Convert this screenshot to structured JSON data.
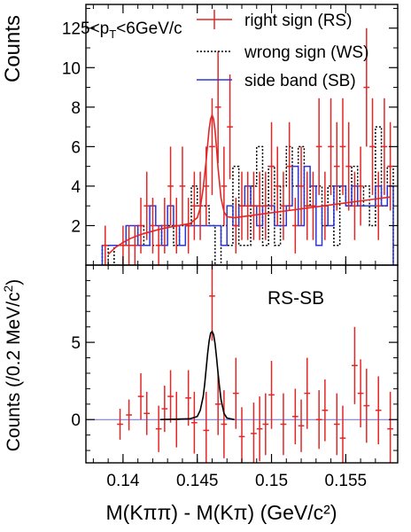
{
  "chart_data": [
    {
      "type": "histogram",
      "panel": "top",
      "ylabel": "Counts",
      "xlim": [
        0.1375,
        0.1585
      ],
      "ylim": [
        0,
        13.2
      ],
      "y_ticks": [
        2,
        4,
        6,
        8,
        10,
        12
      ],
      "x_ticks": [
        0.14,
        0.145,
        0.15,
        0.155
      ],
      "annotation": {
        "pre": "5<p",
        "sub": "T",
        "post": "<6GeV/c"
      },
      "legend": {
        "position": "top-right",
        "entries": [
          {
            "label": "right sign (RS)",
            "style": "error-cross",
            "color": "#e32626"
          },
          {
            "label": "wrong sign (WS)",
            "style": "dotted-line",
            "color": "#000000"
          },
          {
            "label": "side band (SB)",
            "style": "solid-line",
            "color": "#2b36d9"
          }
        ]
      },
      "series": [
        {
          "name": "right sign (RS)",
          "kind": "points",
          "color": "#e32626",
          "bin_width": 0.0004,
          "x": [
            0.1388,
            0.1396,
            0.14,
            0.1404,
            0.1408,
            0.1412,
            0.1416,
            0.142,
            0.1424,
            0.1428,
            0.1432,
            0.1436,
            0.144,
            0.1444,
            0.1448,
            0.1452,
            0.1456,
            0.146,
            0.1464,
            0.1468,
            0.1472,
            0.1476,
            0.148,
            0.1484,
            0.1488,
            0.1492,
            0.1496,
            0.15,
            0.1504,
            0.1508,
            0.1512,
            0.1516,
            0.152,
            0.1524,
            0.1528,
            0.1532,
            0.1536,
            0.154,
            0.1544,
            0.1548,
            0.1552,
            0.1556,
            0.156,
            0.1564,
            0.1568,
            0.1572,
            0.1576,
            0.158
          ],
          "y": [
            1,
            0,
            1,
            1,
            1,
            2,
            3,
            2,
            1,
            2,
            4,
            2,
            4,
            2,
            3,
            3,
            4,
            6,
            8,
            4,
            7,
            2,
            3,
            3,
            3,
            3,
            3,
            5,
            4,
            3,
            5,
            2,
            4,
            3,
            3,
            6,
            3,
            6,
            5,
            6,
            5,
            3,
            4,
            9,
            6,
            3,
            6,
            5
          ],
          "yerr": [
            1.0,
            0.0,
            1.0,
            1.0,
            1.0,
            1.41,
            1.73,
            1.41,
            1.0,
            1.41,
            2.0,
            1.41,
            2.0,
            1.41,
            1.73,
            1.73,
            2.0,
            2.45,
            2.83,
            2.0,
            2.65,
            1.41,
            1.73,
            1.73,
            1.73,
            1.73,
            1.73,
            2.24,
            2.0,
            1.73,
            2.24,
            1.41,
            2.0,
            1.73,
            1.73,
            2.45,
            1.73,
            2.45,
            2.24,
            2.45,
            2.24,
            1.73,
            2.0,
            3.0,
            2.45,
            1.73,
            2.45,
            2.24
          ]
        },
        {
          "name": "wrong sign (WS)",
          "kind": "step",
          "color": "#000000",
          "bin_edges": [
            0.1386,
            0.139,
            0.1394,
            0.1398,
            0.1402,
            0.1406,
            0.141,
            0.1414,
            0.1418,
            0.1422,
            0.1426,
            0.143,
            0.1434,
            0.1438,
            0.1442,
            0.1446,
            0.145,
            0.1454,
            0.1458,
            0.1462,
            0.1466,
            0.147,
            0.1474,
            0.1478,
            0.1482,
            0.1486,
            0.149,
            0.1494,
            0.1498,
            0.1502,
            0.1506,
            0.151,
            0.1514,
            0.1518,
            0.1522,
            0.1526,
            0.153,
            0.1534,
            0.1538,
            0.1542,
            0.1546,
            0.155,
            0.1554,
            0.1558,
            0.1562,
            0.1566,
            0.157,
            0.1574,
            0.1578,
            0.1582
          ],
          "values": [
            1,
            0,
            1,
            1,
            1,
            1,
            2,
            1,
            1,
            1,
            2,
            2,
            1,
            2,
            2,
            4,
            3,
            3,
            2,
            0,
            2,
            1,
            5,
            1,
            1,
            4,
            6,
            1,
            5,
            1,
            4,
            6,
            4,
            6,
            3,
            4,
            4,
            2,
            4,
            1,
            4,
            3,
            5,
            3,
            4,
            2,
            7,
            3,
            5
          ]
        },
        {
          "name": "side band (SB)",
          "kind": "step",
          "color": "#2b36d9",
          "bin_edges": [
            0.1386,
            0.139,
            0.1394,
            0.1398,
            0.1402,
            0.1406,
            0.141,
            0.1414,
            0.1418,
            0.1422,
            0.1426,
            0.143,
            0.1434,
            0.1438,
            0.1442,
            0.1446,
            0.145,
            0.1454,
            0.1458,
            0.1462,
            0.1466,
            0.147,
            0.1474,
            0.1478,
            0.1482,
            0.1486,
            0.149,
            0.1494,
            0.1498,
            0.1502,
            0.1506,
            0.151,
            0.1514,
            0.1518,
            0.1522,
            0.1526,
            0.153,
            0.1534,
            0.1538,
            0.1542,
            0.1546,
            0.155,
            0.1554,
            0.1558,
            0.1562,
            0.1566,
            0.157,
            0.1574,
            0.1578,
            0.1582
          ],
          "values": [
            1,
            1,
            1,
            1,
            2,
            2,
            1,
            1,
            3,
            2,
            1,
            3,
            2,
            1,
            2,
            2,
            2,
            2,
            2,
            2,
            1,
            3,
            2,
            3,
            4,
            3,
            2,
            3,
            3,
            2,
            2,
            3,
            5,
            2,
            5,
            4,
            1,
            3,
            2,
            4,
            4,
            3,
            4,
            3,
            3,
            3,
            4,
            3,
            4
          ]
        },
        {
          "name": "RS fit",
          "kind": "curve",
          "color": "#e32626",
          "x": [
            0.139,
            0.1395,
            0.14,
            0.1405,
            0.141,
            0.1415,
            0.142,
            0.1425,
            0.143,
            0.1435,
            0.144,
            0.1445,
            0.145,
            0.1452,
            0.1454,
            0.1456,
            0.1457,
            0.1458,
            0.1459,
            0.146,
            0.1461,
            0.1462,
            0.1463,
            0.1464,
            0.1466,
            0.1468,
            0.147,
            0.1475,
            0.148,
            0.1485,
            0.149,
            0.1495,
            0.15,
            0.151,
            0.152,
            0.153,
            0.154,
            0.155,
            0.156,
            0.157,
            0.158
          ],
          "y": [
            0.55,
            0.9,
            1.15,
            1.35,
            1.5,
            1.62,
            1.72,
            1.82,
            1.9,
            1.97,
            2.04,
            2.1,
            2.4,
            2.9,
            3.9,
            5.3,
            6.1,
            6.9,
            7.4,
            7.6,
            7.4,
            6.8,
            5.9,
            4.9,
            3.4,
            2.7,
            2.45,
            2.4,
            2.45,
            2.5,
            2.55,
            2.6,
            2.65,
            2.75,
            2.85,
            2.95,
            3.05,
            3.15,
            3.25,
            3.35,
            3.45
          ]
        }
      ]
    },
    {
      "type": "scatter",
      "panel": "bottom",
      "title": "RS-SB",
      "xlabel": "M(Kππ) - M(Kπ) (GeV/c²)",
      "ylabel": {
        "pre": "Counts (/0.2 MeV/c",
        "sup": "2",
        "post": ")"
      },
      "xlim": [
        0.1375,
        0.1585
      ],
      "ylim": [
        -2.8,
        10
      ],
      "y_ticks": [
        0,
        5
      ],
      "x_ticks": [
        0.14,
        0.145,
        0.15,
        0.155
      ],
      "x_tick_labels": [
        "0.14",
        "0.145",
        "0.15",
        "0.155"
      ],
      "zero_line": true,
      "series": [
        {
          "name": "RS-SB",
          "kind": "points",
          "color": "#e32626",
          "bin_width": 0.0004,
          "x": [
            0.1398,
            0.1404,
            0.1412,
            0.1416,
            0.1424,
            0.1428,
            0.1432,
            0.1436,
            0.1444,
            0.1448,
            0.1456,
            0.146,
            0.1464,
            0.1468,
            0.1476,
            0.148,
            0.1488,
            0.1492,
            0.1496,
            0.15,
            0.1508,
            0.1516,
            0.152,
            0.1524,
            0.1532,
            0.1536,
            0.1544,
            0.1548,
            0.1556,
            0.156,
            0.1564,
            0.1572,
            0.158
          ],
          "y": [
            -0.3,
            0.3,
            1.5,
            0.4,
            -0.6,
            0.7,
            1.5,
            0.0,
            1.4,
            -0.2,
            -0.7,
            8.0,
            1.0,
            -0.3,
            1.7,
            -1.1,
            -0.9,
            -0.6,
            -0.3,
            1.6,
            -0.3,
            0.2,
            -0.4,
            1.7,
            0.0,
            0.6,
            -0.3,
            -1.2,
            3.5,
            1.7,
            0.9,
            0.6,
            -0.6
          ],
          "yerr": [
            1.0,
            1.0,
            1.5,
            1.4,
            1.5,
            1.5,
            1.7,
            1.8,
            1.8,
            2.0,
            2.5,
            2.9,
            2.0,
            2.2,
            2.3,
            1.9,
            2.0,
            2.1,
            2.0,
            2.2,
            2.0,
            1.8,
            1.7,
            2.3,
            1.9,
            2.0,
            2.0,
            2.1,
            2.5,
            2.2,
            2.4,
            2.2,
            2.4
          ]
        },
        {
          "name": "RS-SB fit",
          "kind": "curve",
          "color": "#000000",
          "x": [
            0.1425,
            0.1445,
            0.145,
            0.1452,
            0.1454,
            0.1455,
            0.1456,
            0.1457,
            0.1458,
            0.1459,
            0.146,
            0.1461,
            0.1462,
            0.1463,
            0.1464,
            0.1465,
            0.1466,
            0.1468,
            0.147,
            0.1475
          ],
          "y": [
            0.0,
            0.05,
            0.2,
            0.6,
            1.5,
            2.3,
            3.3,
            4.3,
            5.1,
            5.6,
            5.7,
            5.5,
            4.9,
            4.0,
            3.0,
            2.1,
            1.3,
            0.4,
            0.1,
            0.0
          ]
        }
      ]
    }
  ]
}
